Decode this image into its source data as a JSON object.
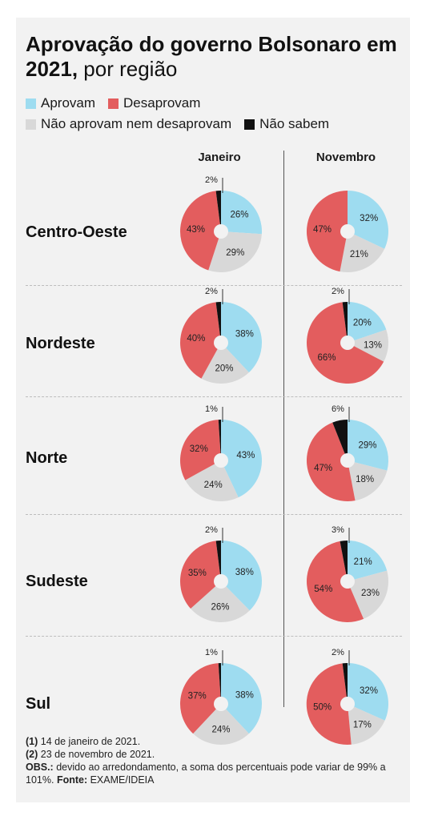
{
  "title": {
    "bold": "Aprovação do governo Bolsonaro em 2021,",
    "rest": " por região"
  },
  "legend": [
    {
      "label": "Aprovam",
      "color": "#9edcf0"
    },
    {
      "label": "Desaprovam",
      "color": "#e35d5e"
    },
    {
      "label": "Não aprovam nem desaprovam",
      "color": "#d8d8d8"
    },
    {
      "label": "Não sabem",
      "color": "#111111"
    }
  ],
  "columns": [
    "Janeiro",
    "Novembro"
  ],
  "notes": {
    "n1_mark": "(1)",
    "n1_text": " 14 de janeiro de 2021.",
    "n2_mark": "(2)",
    "n2_text": " 23 de novembro de 2021.",
    "obs_mark": "OBS.:",
    "obs_text": " devido ao arredondamento, a soma dos percentuais pode variar de 99% a 101%.",
    "source_mark": "Fonte:",
    "source_text": " EXAME/IDEIA"
  },
  "chart_data": {
    "type": "pie",
    "categories": [
      "Aprovam",
      "Não aprovam nem desaprovam",
      "Desaprovam",
      "Não sabem"
    ],
    "columns": [
      "Janeiro",
      "Novembro"
    ],
    "regions": [
      {
        "name": "Centro-Oeste",
        "values": [
          [
            26,
            29,
            43,
            2
          ],
          [
            32,
            21,
            47,
            null
          ]
        ]
      },
      {
        "name": "Nordeste",
        "values": [
          [
            38,
            20,
            40,
            2
          ],
          [
            20,
            13,
            66,
            2
          ]
        ]
      },
      {
        "name": "Norte",
        "values": [
          [
            43,
            24,
            32,
            1
          ],
          [
            29,
            18,
            47,
            6
          ]
        ]
      },
      {
        "name": "Sudeste",
        "values": [
          [
            38,
            26,
            35,
            2
          ],
          [
            21,
            23,
            54,
            3
          ]
        ]
      },
      {
        "name": "Sul",
        "values": [
          [
            38,
            24,
            37,
            1
          ],
          [
            32,
            17,
            50,
            2
          ]
        ]
      }
    ]
  }
}
